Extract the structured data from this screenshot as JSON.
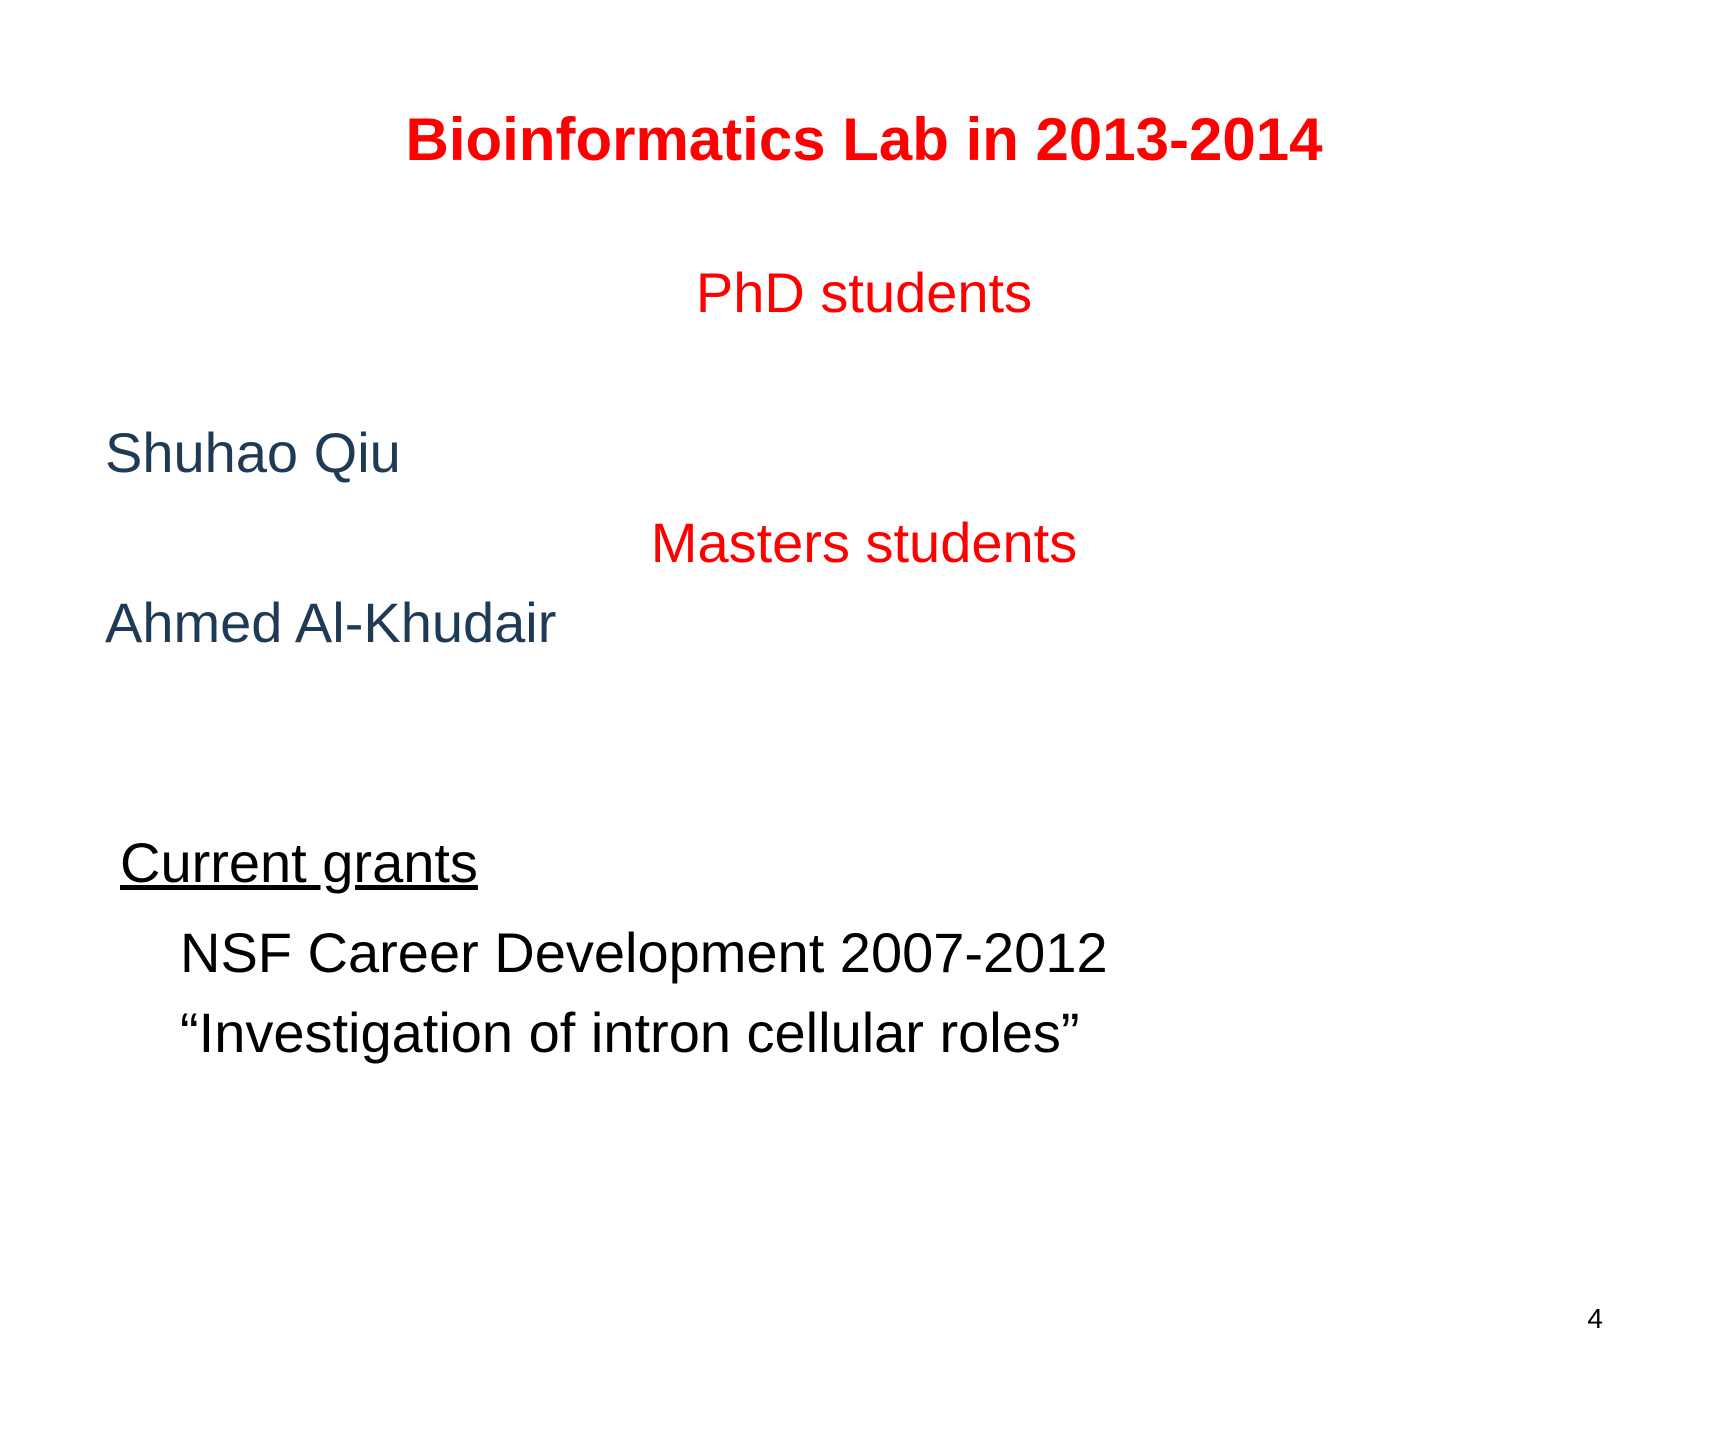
{
  "slide": {
    "title": "Bioinformatics Lab in 2013-2014",
    "phd_heading": "PhD students",
    "phd_student": "Shuhao Qiu",
    "masters_heading": "Masters students",
    "masters_student": "Ahmed Al-Khudair",
    "grants_heading": "Current grants",
    "grant_line_1": "NSF Career Development 2007-2012",
    "grant_line_2": "“Investigation of intron cellular roles”",
    "page_number": "4"
  },
  "colors": {
    "title_red": "#ff0000",
    "dark_blue": "#1f3a54",
    "black": "#000000",
    "background": "#ffffff"
  },
  "typography": {
    "title_fontsize": 60,
    "body_fontsize": 56,
    "pagenum_fontsize": 28,
    "font_family": "Arial"
  }
}
